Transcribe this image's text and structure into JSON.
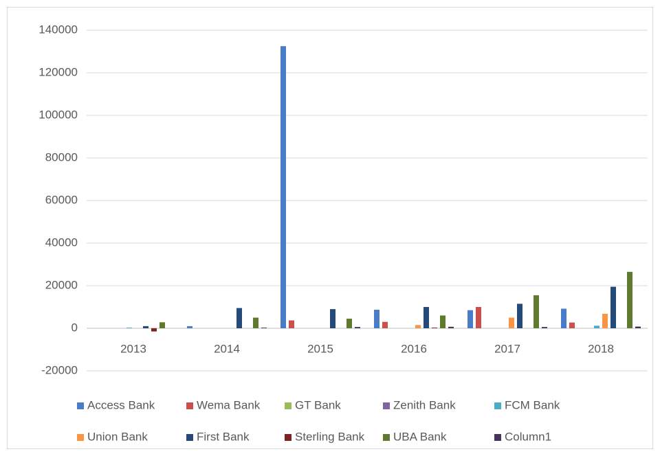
{
  "chart_data": {
    "type": "bar",
    "categories": [
      "2013",
      "2014",
      "2015",
      "2016",
      "2017",
      "2018"
    ],
    "series": [
      {
        "name": "Access Bank",
        "color": "#4a7cc7",
        "values": [
          0,
          1000,
          132500,
          8700,
          8500,
          9200
        ]
      },
      {
        "name": "Wema Bank",
        "color": "#c9504b",
        "values": [
          0,
          0,
          3700,
          3000,
          10000,
          2700
        ]
      },
      {
        "name": "GT Bank",
        "color": "#9bbb59",
        "values": [
          0,
          0,
          0,
          0,
          0,
          0
        ]
      },
      {
        "name": "Zenith Bank",
        "color": "#8064a2",
        "values": [
          0,
          0,
          0,
          0,
          0,
          0
        ]
      },
      {
        "name": "FCM Bank",
        "color": "#4bacc6",
        "values": [
          300,
          0,
          0,
          0,
          0,
          1200
        ]
      },
      {
        "name": "Union Bank",
        "color": "#f79646",
        "values": [
          0,
          0,
          0,
          1500,
          5000,
          6800
        ]
      },
      {
        "name": "First Bank",
        "color": "#264a78",
        "values": [
          1000,
          9500,
          9000,
          10000,
          11500,
          19500
        ]
      },
      {
        "name": "Sterling Bank",
        "color": "#7b2424",
        "values": [
          -1500,
          0,
          0,
          300,
          0,
          0
        ]
      },
      {
        "name": "UBA Bank",
        "color": "#5f7a2e",
        "values": [
          2800,
          5000,
          4500,
          6000,
          15500,
          26500
        ]
      },
      {
        "name": "Column1",
        "color": "#46345e",
        "values": [
          0,
          300,
          600,
          700,
          600,
          800
        ]
      }
    ],
    "ylim": [
      -20000,
      140000
    ],
    "yticks": [
      -20000,
      0,
      20000,
      40000,
      60000,
      80000,
      100000,
      120000,
      140000
    ],
    "grid": true
  }
}
